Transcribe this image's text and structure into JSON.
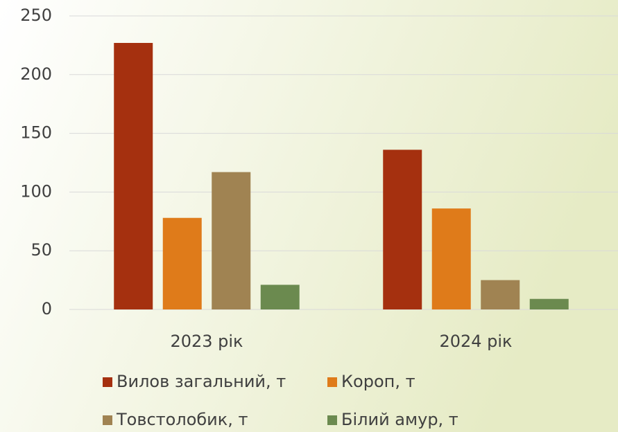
{
  "chart_data": {
    "type": "bar",
    "categories": [
      "2023 рік",
      "2024 рік"
    ],
    "series": [
      {
        "name": "Вилов загальний, т",
        "color": "#a5300f",
        "values": [
          227,
          136
        ]
      },
      {
        "name": "Короп, т",
        "color": "#df7b1a",
        "values": [
          78,
          86
        ]
      },
      {
        "name": "Товстолобик, т",
        "color": "#a08352",
        "values": [
          117,
          25
        ]
      },
      {
        "name": "Білий амур, т",
        "color": "#6b8a4f",
        "values": [
          21,
          9
        ]
      }
    ],
    "ylim": [
      0,
      250
    ],
    "yticks": [
      0,
      50,
      100,
      150,
      200,
      250
    ],
    "grid": true,
    "legend": "bottom"
  }
}
